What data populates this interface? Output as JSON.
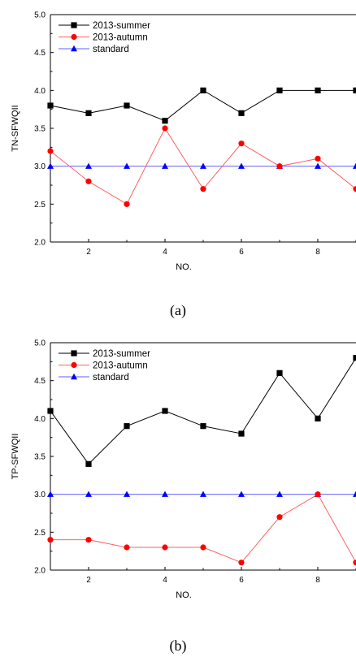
{
  "colors": {
    "summer": "#000000",
    "autumn": "#ff0000",
    "standard": "#0000ff",
    "summer_line": "#000000",
    "autumn_line": "#ff6060",
    "standard_line": "#6060ff"
  },
  "charts": [
    {
      "caption": "(a)",
      "markers": {
        "summer": "square",
        "autumn": "circle",
        "standard": "triangle"
      }
    },
    {
      "caption": "(b)",
      "markers": {
        "summer": "square",
        "autumn": "circle",
        "standard": "triangle"
      }
    }
  ],
  "chart_data": [
    {
      "type": "line",
      "xlabel": "NO.",
      "ylabel": "TN-SFWQII",
      "xlim": [
        1,
        9
      ],
      "ylim": [
        2.0,
        5.0
      ],
      "xticks": [
        2,
        4,
        6,
        8
      ],
      "yticks": [
        "2.0",
        "2.5",
        "3.0",
        "3.5",
        "4.0",
        "4.5",
        "5.0"
      ],
      "x": [
        1,
        2,
        3,
        4,
        5,
        6,
        7,
        8,
        9
      ],
      "series": [
        {
          "name": "2013-summer",
          "values": [
            3.8,
            3.7,
            3.8,
            3.6,
            4.0,
            3.7,
            4.0,
            4.0,
            4.0
          ]
        },
        {
          "name": "2013-autumn",
          "values": [
            3.2,
            2.8,
            2.5,
            3.5,
            2.7,
            3.3,
            3.0,
            3.1,
            2.7
          ]
        },
        {
          "name": "standard",
          "values": [
            3.0,
            3.0,
            3.0,
            3.0,
            3.0,
            3.0,
            3.0,
            3.0,
            3.0
          ]
        }
      ],
      "legend_position": "top-left",
      "grid": false
    },
    {
      "type": "line",
      "xlabel": "NO.",
      "ylabel": "TP-SFWQII",
      "xlim": [
        1,
        9
      ],
      "ylim": [
        2.0,
        5.0
      ],
      "xticks": [
        2,
        4,
        6,
        8
      ],
      "yticks": [
        "2.0",
        "2.5",
        "3.0",
        "3.5",
        "4.0",
        "4.5",
        "5.0"
      ],
      "x": [
        1,
        2,
        3,
        4,
        5,
        6,
        7,
        8,
        9
      ],
      "series": [
        {
          "name": "2013-summer",
          "values": [
            4.1,
            3.4,
            3.9,
            4.1,
            3.9,
            3.8,
            4.6,
            4.0,
            4.8
          ]
        },
        {
          "name": "2013-autumn",
          "values": [
            2.4,
            2.4,
            2.3,
            2.3,
            2.3,
            2.1,
            2.7,
            3.0,
            2.1
          ]
        },
        {
          "name": "standard",
          "values": [
            3.0,
            3.0,
            3.0,
            3.0,
            3.0,
            3.0,
            3.0,
            3.0,
            3.0
          ]
        }
      ],
      "legend_position": "top-left",
      "grid": false
    }
  ]
}
